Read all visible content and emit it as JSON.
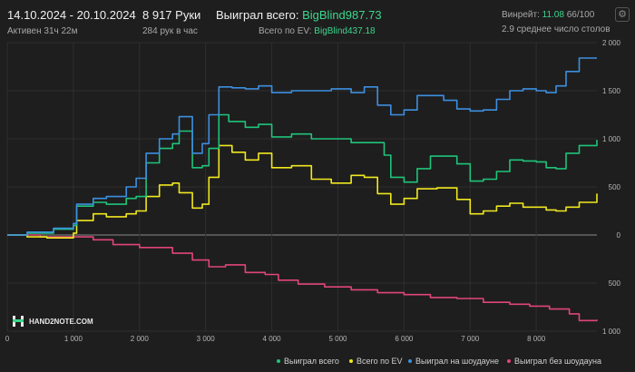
{
  "header": {
    "date_range": "14.10.2024 - 20.10.2024",
    "active": "Активен 31ч 22м",
    "hands": "8 917 Руки",
    "hands_per_hour": "284 рук в час",
    "won_total_label": "Выиграл всего:",
    "won_total_value": "BigBlind987.73",
    "ev_total_label": "Всего по EV:",
    "ev_total_value": "BigBlind437.18",
    "winrate_label": "Винрейт:",
    "winrate_value": "11.08",
    "winrate_rest": "66/100",
    "avg_tables": "2.9 среднее число столов",
    "settings_icon": "gear-icon"
  },
  "logo": {
    "text": "HAND2NOTE.COM"
  },
  "colors": {
    "background": "#1e1e1e",
    "won_total": "#1fc47a",
    "ev": "#f0e81f",
    "showdown": "#3d8fe0",
    "no_showdown": "#e0457a",
    "accent_green": "#3dd68c"
  },
  "chart_data": {
    "type": "line",
    "xlim": [
      0,
      8917
    ],
    "ylim": [
      -1000,
      2000
    ],
    "x_ticks": [
      0,
      1000,
      2000,
      3000,
      4000,
      5000,
      6000,
      7000,
      8000
    ],
    "x_tick_labels": [
      "0",
      "1 000",
      "2 000",
      "3 000",
      "4 000",
      "5 000",
      "6 000",
      "7 000",
      "8 000"
    ],
    "y_ticks": [
      2000,
      1500,
      1000,
      500,
      0,
      -500,
      -1000
    ],
    "y_tick_labels": [
      "2 000",
      "1 500",
      "1 000",
      "500",
      "0",
      "500",
      "1 000"
    ],
    "grid": true,
    "legend_position": "bottom-right",
    "series": [
      {
        "name": "Выиграл всего",
        "color": "#1fc47a",
        "points": [
          [
            0,
            0
          ],
          [
            300,
            20
          ],
          [
            700,
            60
          ],
          [
            1000,
            100
          ],
          [
            1050,
            300
          ],
          [
            1300,
            340
          ],
          [
            1500,
            320
          ],
          [
            1800,
            380
          ],
          [
            1950,
            400
          ],
          [
            2100,
            750
          ],
          [
            2300,
            900
          ],
          [
            2500,
            950
          ],
          [
            2600,
            1080
          ],
          [
            2800,
            700
          ],
          [
            2950,
            720
          ],
          [
            3050,
            900
          ],
          [
            3200,
            1250
          ],
          [
            3350,
            1180
          ],
          [
            3600,
            1120
          ],
          [
            3800,
            1150
          ],
          [
            4000,
            1020
          ],
          [
            4300,
            1050
          ],
          [
            4600,
            1000
          ],
          [
            4900,
            1000
          ],
          [
            5200,
            960
          ],
          [
            5500,
            960
          ],
          [
            5700,
            830
          ],
          [
            5800,
            600
          ],
          [
            6000,
            550
          ],
          [
            6200,
            690
          ],
          [
            6400,
            820
          ],
          [
            6600,
            820
          ],
          [
            6800,
            740
          ],
          [
            7000,
            560
          ],
          [
            7200,
            580
          ],
          [
            7400,
            660
          ],
          [
            7600,
            780
          ],
          [
            7800,
            770
          ],
          [
            8000,
            760
          ],
          [
            8150,
            700
          ],
          [
            8300,
            690
          ],
          [
            8450,
            850
          ],
          [
            8650,
            930
          ],
          [
            8917,
            990
          ]
        ]
      },
      {
        "name": "Всего по EV",
        "color": "#f0e81f",
        "points": [
          [
            0,
            0
          ],
          [
            300,
            -20
          ],
          [
            600,
            -30
          ],
          [
            1000,
            20
          ],
          [
            1050,
            150
          ],
          [
            1300,
            220
          ],
          [
            1500,
            190
          ],
          [
            1800,
            220
          ],
          [
            1950,
            250
          ],
          [
            2100,
            400
          ],
          [
            2300,
            520
          ],
          [
            2500,
            540
          ],
          [
            2600,
            440
          ],
          [
            2800,
            280
          ],
          [
            2950,
            320
          ],
          [
            3050,
            600
          ],
          [
            3200,
            930
          ],
          [
            3400,
            860
          ],
          [
            3600,
            780
          ],
          [
            3800,
            850
          ],
          [
            4000,
            700
          ],
          [
            4300,
            720
          ],
          [
            4600,
            580
          ],
          [
            4900,
            540
          ],
          [
            5200,
            620
          ],
          [
            5400,
            600
          ],
          [
            5600,
            430
          ],
          [
            5800,
            320
          ],
          [
            6000,
            380
          ],
          [
            6200,
            480
          ],
          [
            6500,
            490
          ],
          [
            6800,
            370
          ],
          [
            7000,
            220
          ],
          [
            7200,
            250
          ],
          [
            7400,
            300
          ],
          [
            7600,
            330
          ],
          [
            7800,
            290
          ],
          [
            8000,
            290
          ],
          [
            8150,
            260
          ],
          [
            8300,
            250
          ],
          [
            8450,
            290
          ],
          [
            8650,
            340
          ],
          [
            8917,
            430
          ]
        ]
      },
      {
        "name": "Выиграл на шоудауне",
        "color": "#3d8fe0",
        "points": [
          [
            0,
            0
          ],
          [
            300,
            30
          ],
          [
            700,
            70
          ],
          [
            1000,
            120
          ],
          [
            1050,
            320
          ],
          [
            1300,
            380
          ],
          [
            1500,
            400
          ],
          [
            1800,
            500
          ],
          [
            1950,
            590
          ],
          [
            2100,
            850
          ],
          [
            2300,
            1000
          ],
          [
            2500,
            1050
          ],
          [
            2600,
            1230
          ],
          [
            2800,
            850
          ],
          [
            2950,
            950
          ],
          [
            3050,
            1250
          ],
          [
            3200,
            1540
          ],
          [
            3400,
            1530
          ],
          [
            3600,
            1520
          ],
          [
            3800,
            1550
          ],
          [
            4000,
            1480
          ],
          [
            4300,
            1500
          ],
          [
            4600,
            1500
          ],
          [
            4900,
            1520
          ],
          [
            5200,
            1480
          ],
          [
            5400,
            1540
          ],
          [
            5600,
            1350
          ],
          [
            5800,
            1250
          ],
          [
            6000,
            1300
          ],
          [
            6200,
            1450
          ],
          [
            6400,
            1450
          ],
          [
            6600,
            1400
          ],
          [
            6800,
            1310
          ],
          [
            7000,
            1290
          ],
          [
            7200,
            1300
          ],
          [
            7400,
            1410
          ],
          [
            7600,
            1500
          ],
          [
            7800,
            1520
          ],
          [
            8000,
            1500
          ],
          [
            8150,
            1480
          ],
          [
            8300,
            1550
          ],
          [
            8450,
            1700
          ],
          [
            8650,
            1840
          ],
          [
            8917,
            1840
          ]
        ]
      },
      {
        "name": "Выиграл без шоудауна",
        "color": "#e0457a",
        "points": [
          [
            0,
            0
          ],
          [
            500,
            -20
          ],
          [
            1000,
            -20
          ],
          [
            1300,
            -50
          ],
          [
            1600,
            -100
          ],
          [
            2000,
            -130
          ],
          [
            2500,
            -190
          ],
          [
            2800,
            -260
          ],
          [
            3050,
            -330
          ],
          [
            3300,
            -310
          ],
          [
            3600,
            -390
          ],
          [
            3900,
            -410
          ],
          [
            4100,
            -470
          ],
          [
            4400,
            -510
          ],
          [
            4800,
            -540
          ],
          [
            5200,
            -570
          ],
          [
            5600,
            -600
          ],
          [
            6000,
            -620
          ],
          [
            6400,
            -650
          ],
          [
            6800,
            -660
          ],
          [
            7200,
            -700
          ],
          [
            7600,
            -720
          ],
          [
            7900,
            -740
          ],
          [
            8200,
            -770
          ],
          [
            8500,
            -820
          ],
          [
            8650,
            -890
          ],
          [
            8917,
            -880
          ]
        ]
      }
    ]
  }
}
